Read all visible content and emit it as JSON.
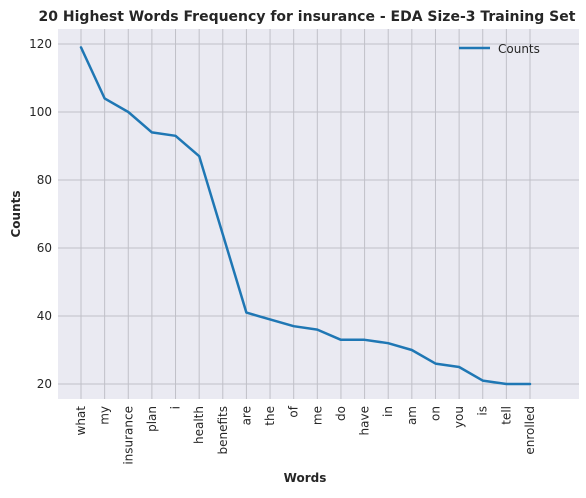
{
  "chart_data": {
    "type": "line",
    "title": "20 Highest Words Frequency for insurance - EDA Size-3 Training Set",
    "xlabel": "Words",
    "ylabel": "Counts",
    "categories": [
      "what",
      "my",
      "insurance",
      "plan",
      "i",
      "health",
      "benefits",
      "are",
      "the",
      "of",
      "me",
      "do",
      "have",
      "in",
      "am",
      "on",
      "you",
      "is",
      "tell",
      "enrolled"
    ],
    "series": [
      {
        "name": "Counts",
        "values": [
          119,
          104,
          100,
          94,
          93,
          87,
          64,
          41,
          39,
          37,
          36,
          33,
          33,
          32,
          30,
          26,
          25,
          21,
          20,
          20
        ]
      }
    ],
    "yticks": [
      20,
      40,
      60,
      80,
      100,
      120
    ],
    "ylim": [
      15,
      122
    ],
    "grid": true,
    "legend_position": "top-right",
    "colors": {
      "line": "#1f77b4",
      "background": "#eaeaf2",
      "grid": "#c0c0c8"
    }
  }
}
